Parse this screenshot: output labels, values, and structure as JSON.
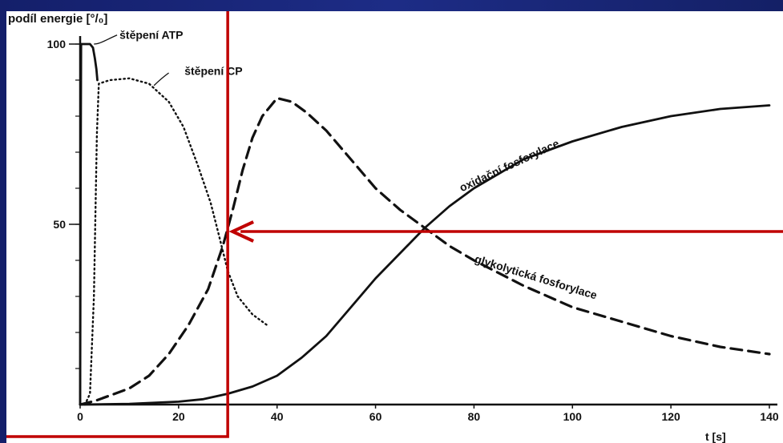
{
  "colors": {
    "background": "#1c2a78",
    "plot_bg": "#ffffff",
    "ink": "#111111",
    "highlight": "#c00000"
  },
  "chart_data": {
    "type": "line",
    "title": "",
    "ylabel": "podíl energie [°/₀]",
    "xlabel": "t [s]",
    "xlim": [
      0,
      140
    ],
    "ylim": [
      0,
      100
    ],
    "x_ticks": [
      0,
      20,
      40,
      60,
      80,
      100,
      120,
      140
    ],
    "y_ticks": [
      50,
      100
    ],
    "grid": false,
    "series": [
      {
        "name": "štěpení ATP",
        "style": "solid",
        "points": [
          [
            0,
            0
          ],
          [
            0.1,
            60
          ],
          [
            0.2,
            100
          ],
          [
            2,
            100
          ],
          [
            2.6,
            99
          ],
          [
            3,
            96
          ],
          [
            3.3,
            93
          ],
          [
            3.5,
            90
          ]
        ]
      },
      {
        "name": "štěpení CP",
        "style": "dotted",
        "points": [
          [
            0,
            0
          ],
          [
            1,
            0
          ],
          [
            2,
            3
          ],
          [
            2.8,
            30
          ],
          [
            3.4,
            75
          ],
          [
            3.8,
            89
          ],
          [
            6,
            90
          ],
          [
            10,
            90.5
          ],
          [
            14,
            89
          ],
          [
            18,
            84
          ],
          [
            21,
            77
          ],
          [
            24,
            66
          ],
          [
            26.5,
            56
          ],
          [
            28,
            48
          ],
          [
            30,
            37
          ],
          [
            32,
            30
          ],
          [
            35,
            25
          ],
          [
            38,
            22
          ]
        ]
      },
      {
        "name": "glykolytická fosforylace",
        "style": "dashed",
        "points": [
          [
            0,
            0
          ],
          [
            3,
            1
          ],
          [
            6,
            2.5
          ],
          [
            10,
            4.5
          ],
          [
            14,
            8
          ],
          [
            18,
            14
          ],
          [
            22,
            22
          ],
          [
            26,
            32
          ],
          [
            29,
            44
          ],
          [
            31,
            54
          ],
          [
            33,
            65
          ],
          [
            35,
            74
          ],
          [
            37,
            80
          ],
          [
            40,
            85
          ],
          [
            43,
            84
          ],
          [
            46,
            81
          ],
          [
            50,
            76
          ],
          [
            55,
            68
          ],
          [
            60,
            60
          ],
          [
            65,
            54
          ],
          [
            70,
            49
          ],
          [
            75,
            44
          ],
          [
            80,
            40
          ],
          [
            90,
            33
          ],
          [
            100,
            27
          ],
          [
            110,
            23
          ],
          [
            120,
            19
          ],
          [
            130,
            16
          ],
          [
            140,
            14
          ]
        ]
      },
      {
        "name": "oxidační fosforylace",
        "style": "solid",
        "points": [
          [
            0,
            0
          ],
          [
            10,
            0.2
          ],
          [
            20,
            0.8
          ],
          [
            25,
            1.5
          ],
          [
            30,
            3
          ],
          [
            35,
            5
          ],
          [
            40,
            8
          ],
          [
            45,
            13
          ],
          [
            50,
            19
          ],
          [
            55,
            27
          ],
          [
            60,
            35
          ],
          [
            65,
            42
          ],
          [
            70,
            49
          ],
          [
            75,
            55
          ],
          [
            80,
            60
          ],
          [
            90,
            68
          ],
          [
            100,
            73
          ],
          [
            110,
            77
          ],
          [
            120,
            80
          ],
          [
            130,
            82
          ],
          [
            140,
            83
          ]
        ]
      }
    ],
    "annotations": [
      {
        "text": "štěpení ATP"
      },
      {
        "text": "štěpení CP"
      },
      {
        "text": "oxidační fosforylace"
      },
      {
        "text": "glykolytická fosforylace"
      }
    ],
    "highlight": {
      "box_x_range": [
        0,
        29
      ],
      "arrow_target": {
        "x": 29,
        "y": 48
      }
    }
  }
}
